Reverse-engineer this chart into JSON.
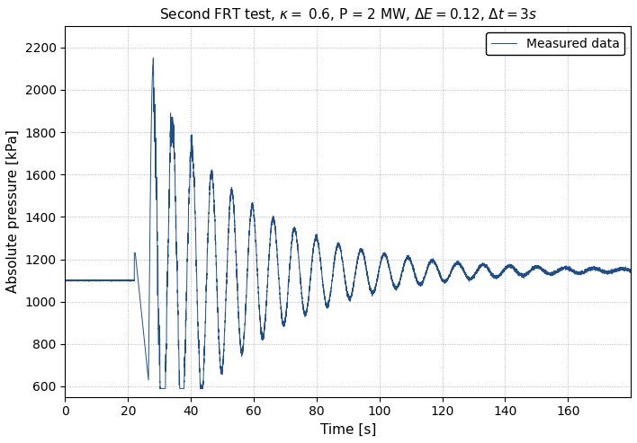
{
  "title": "Second FRT test, $\\kappa =\\ $ 0.6, P = 2 MW, $\\Delta E = 0.12$, $\\Delta t = 3s$",
  "xlabel": "Time [s]",
  "ylabel": "Absolute pressure [kPa]",
  "xlim": [
    0,
    180
  ],
  "ylim": [
    550,
    2300
  ],
  "xticks": [
    0,
    20,
    40,
    60,
    80,
    100,
    120,
    140,
    160
  ],
  "yticks": [
    600,
    800,
    1000,
    1200,
    1400,
    1600,
    1800,
    2000,
    2200
  ],
  "line_color": "#1f4e8c",
  "legend_label": "Measured data",
  "background_color": "#ffffff",
  "grid_color": "#aaaaaa",
  "figsize": [
    7.08,
    4.93
  ],
  "dpi": 100,
  "baseline": 1100,
  "event_start": 22.0,
  "steady_state": 1150
}
